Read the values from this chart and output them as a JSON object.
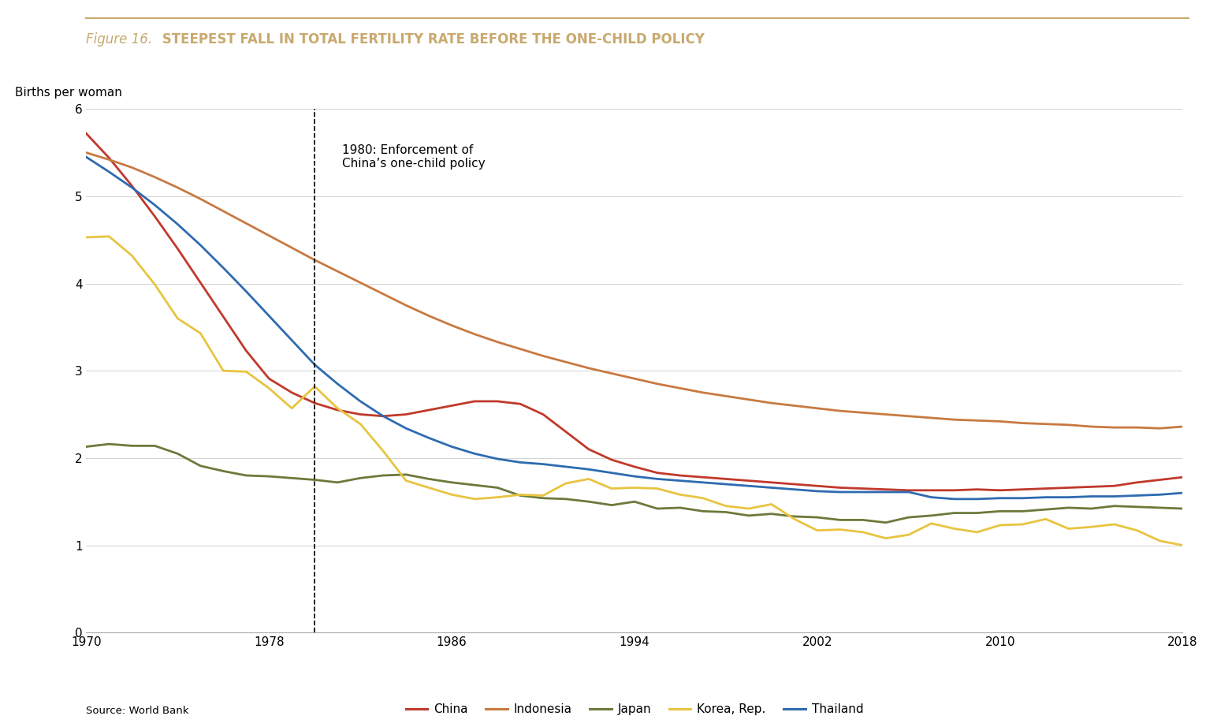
{
  "title_italic": "Figure 16.",
  "title_bold": " STEEPEST FALL IN TOTAL FERTILITY RATE BEFORE THE ONE-CHILD POLICY",
  "ylabel": "Births per woman",
  "source": "Source: World Bank",
  "annotation": "1980: Enforcement of\nChina’s one-child policy",
  "vline_year": 1980,
  "xlim": [
    1970,
    2018
  ],
  "ylim": [
    0,
    6
  ],
  "yticks": [
    0,
    1,
    2,
    3,
    4,
    5,
    6
  ],
  "xticks": [
    1970,
    1978,
    1986,
    1994,
    2002,
    2010,
    2018
  ],
  "title_color": "#C8A96E",
  "top_line_color": "#C8A96E",
  "background_color": "#FFFFFF",
  "series": {
    "China": {
      "color": "#C0392B",
      "years": [
        1970,
        1971,
        1972,
        1973,
        1974,
        1975,
        1976,
        1977,
        1978,
        1979,
        1980,
        1981,
        1982,
        1983,
        1984,
        1985,
        1986,
        1987,
        1988,
        1989,
        1990,
        1991,
        1992,
        1993,
        1994,
        1995,
        1996,
        1997,
        1998,
        1999,
        2000,
        2001,
        2002,
        2003,
        2004,
        2005,
        2006,
        2007,
        2008,
        2009,
        2010,
        2011,
        2012,
        2013,
        2014,
        2015,
        2016,
        2017,
        2018
      ],
      "values": [
        5.72,
        5.44,
        5.12,
        4.77,
        4.4,
        4.01,
        3.62,
        3.23,
        2.91,
        2.75,
        2.63,
        2.55,
        2.5,
        2.48,
        2.5,
        2.55,
        2.6,
        2.65,
        2.65,
        2.62,
        2.5,
        2.3,
        2.1,
        1.98,
        1.9,
        1.83,
        1.8,
        1.78,
        1.76,
        1.74,
        1.72,
        1.7,
        1.68,
        1.66,
        1.65,
        1.64,
        1.63,
        1.63,
        1.63,
        1.64,
        1.63,
        1.64,
        1.65,
        1.66,
        1.67,
        1.68,
        1.72,
        1.75,
        1.78
      ]
    },
    "Indonesia": {
      "color": "#C87941",
      "years": [
        1970,
        1971,
        1972,
        1973,
        1974,
        1975,
        1976,
        1977,
        1978,
        1979,
        1980,
        1981,
        1982,
        1983,
        1984,
        1985,
        1986,
        1987,
        1988,
        1989,
        1990,
        1991,
        1992,
        1993,
        1994,
        1995,
        1996,
        1997,
        1998,
        1999,
        2000,
        2001,
        2002,
        2003,
        2004,
        2005,
        2006,
        2007,
        2008,
        2009,
        2010,
        2011,
        2012,
        2013,
        2014,
        2015,
        2016,
        2017,
        2018
      ],
      "values": [
        5.5,
        5.42,
        5.33,
        5.22,
        5.1,
        4.97,
        4.83,
        4.69,
        4.55,
        4.41,
        4.27,
        4.14,
        4.01,
        3.88,
        3.75,
        3.63,
        3.52,
        3.42,
        3.33,
        3.25,
        3.17,
        3.1,
        3.03,
        2.97,
        2.91,
        2.85,
        2.8,
        2.75,
        2.71,
        2.67,
        2.63,
        2.6,
        2.57,
        2.54,
        2.52,
        2.5,
        2.48,
        2.46,
        2.44,
        2.43,
        2.42,
        2.4,
        2.39,
        2.38,
        2.36,
        2.35,
        2.35,
        2.34,
        2.36
      ]
    },
    "Japan": {
      "color": "#6B7A3A",
      "years": [
        1970,
        1971,
        1972,
        1973,
        1974,
        1975,
        1976,
        1977,
        1978,
        1979,
        1980,
        1981,
        1982,
        1983,
        1984,
        1985,
        1986,
        1987,
        1988,
        1989,
        1990,
        1991,
        1992,
        1993,
        1994,
        1995,
        1996,
        1997,
        1998,
        1999,
        2000,
        2001,
        2002,
        2003,
        2004,
        2005,
        2006,
        2007,
        2008,
        2009,
        2010,
        2011,
        2012,
        2013,
        2014,
        2015,
        2016,
        2017,
        2018
      ],
      "values": [
        2.13,
        2.16,
        2.14,
        2.14,
        2.05,
        1.91,
        1.85,
        1.8,
        1.79,
        1.77,
        1.75,
        1.72,
        1.77,
        1.8,
        1.81,
        1.76,
        1.72,
        1.69,
        1.66,
        1.57,
        1.54,
        1.53,
        1.5,
        1.46,
        1.5,
        1.42,
        1.43,
        1.39,
        1.38,
        1.34,
        1.36,
        1.33,
        1.32,
        1.29,
        1.29,
        1.26,
        1.32,
        1.34,
        1.37,
        1.37,
        1.39,
        1.39,
        1.41,
        1.43,
        1.42,
        1.45,
        1.44,
        1.43,
        1.42
      ]
    },
    "Korea, Rep.": {
      "color": "#E8C440",
      "years": [
        1970,
        1971,
        1972,
        1973,
        1974,
        1975,
        1976,
        1977,
        1978,
        1979,
        1980,
        1981,
        1982,
        1983,
        1984,
        1985,
        1986,
        1987,
        1988,
        1989,
        1990,
        1991,
        1992,
        1993,
        1994,
        1995,
        1996,
        1997,
        1998,
        1999,
        2000,
        2001,
        2002,
        2003,
        2004,
        2005,
        2006,
        2007,
        2008,
        2009,
        2010,
        2011,
        2012,
        2013,
        2014,
        2015,
        2016,
        2017,
        2018
      ],
      "values": [
        4.53,
        4.54,
        4.32,
        3.99,
        3.6,
        3.43,
        3.0,
        2.99,
        2.8,
        2.57,
        2.82,
        2.57,
        2.39,
        2.08,
        1.74,
        1.66,
        1.58,
        1.53,
        1.55,
        1.58,
        1.57,
        1.71,
        1.76,
        1.65,
        1.66,
        1.65,
        1.58,
        1.54,
        1.45,
        1.42,
        1.47,
        1.3,
        1.17,
        1.18,
        1.15,
        1.08,
        1.12,
        1.25,
        1.19,
        1.15,
        1.23,
        1.24,
        1.3,
        1.19,
        1.21,
        1.24,
        1.17,
        1.05,
        1.0
      ]
    },
    "Thailand": {
      "color": "#2E6BB0",
      "years": [
        1970,
        1971,
        1972,
        1973,
        1974,
        1975,
        1976,
        1977,
        1978,
        1979,
        1980,
        1981,
        1982,
        1983,
        1984,
        1985,
        1986,
        1987,
        1988,
        1989,
        1990,
        1991,
        1992,
        1993,
        1994,
        1995,
        1996,
        1997,
        1998,
        1999,
        2000,
        2001,
        2002,
        2003,
        2004,
        2005,
        2006,
        2007,
        2008,
        2009,
        2010,
        2011,
        2012,
        2013,
        2014,
        2015,
        2016,
        2017,
        2018
      ],
      "values": [
        5.45,
        5.28,
        5.1,
        4.9,
        4.68,
        4.44,
        4.18,
        3.91,
        3.63,
        3.35,
        3.07,
        2.85,
        2.65,
        2.48,
        2.34,
        2.23,
        2.13,
        2.05,
        1.99,
        1.95,
        1.93,
        1.9,
        1.87,
        1.83,
        1.79,
        1.76,
        1.74,
        1.72,
        1.7,
        1.68,
        1.66,
        1.64,
        1.62,
        1.61,
        1.61,
        1.61,
        1.61,
        1.55,
        1.53,
        1.53,
        1.54,
        1.54,
        1.55,
        1.55,
        1.56,
        1.56,
        1.57,
        1.58,
        1.6
      ]
    }
  },
  "legend_order": [
    "China",
    "Indonesia",
    "Japan",
    "Korea, Rep.",
    "Thailand"
  ],
  "linewidth": 2.0
}
